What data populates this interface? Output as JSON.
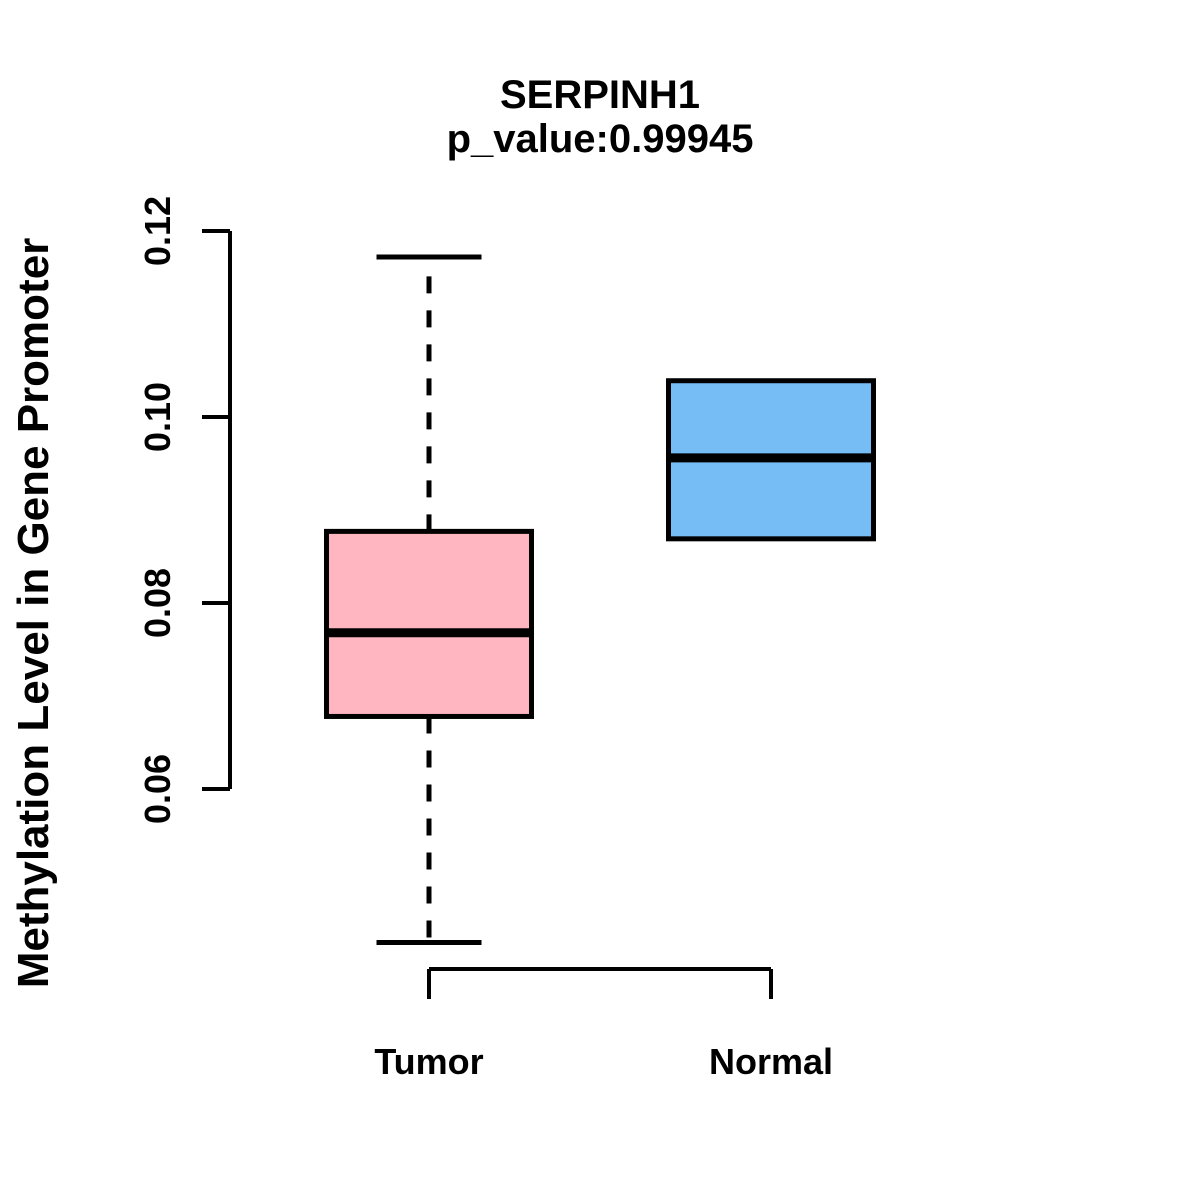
{
  "chart_data": {
    "type": "boxplot",
    "title": "SERPINH1",
    "subtitle": "p_value:0.99945",
    "ylabel": "Methylation Level in Gene Promoter",
    "xlabel": "",
    "yticks": [
      0.06,
      0.08,
      0.1,
      0.12
    ],
    "ytick_labels": [
      "0.06",
      "0.08",
      "0.10",
      "0.12"
    ],
    "ylim": [
      0.0407,
      0.1201
    ],
    "grid": false,
    "legend": "none",
    "background": "#FFFFFF",
    "axis_color": "#000000",
    "groups": [
      {
        "label": "Tumor",
        "fill_color": "#FFB6C1",
        "whisker_low": 0.0435,
        "q1": 0.0678,
        "median": 0.0768,
        "q3": 0.0877,
        "whisker_high": 0.1172,
        "whisker_line_style": "dashed",
        "outliers": []
      },
      {
        "label": "Normal",
        "fill_color": "#77BDF5",
        "whisker_low": 0.0869,
        "q1": 0.0869,
        "median": 0.0956,
        "q3": 0.1039,
        "whisker_high": 0.1039,
        "whisker_line_style": "dashed",
        "outliers": []
      }
    ]
  }
}
